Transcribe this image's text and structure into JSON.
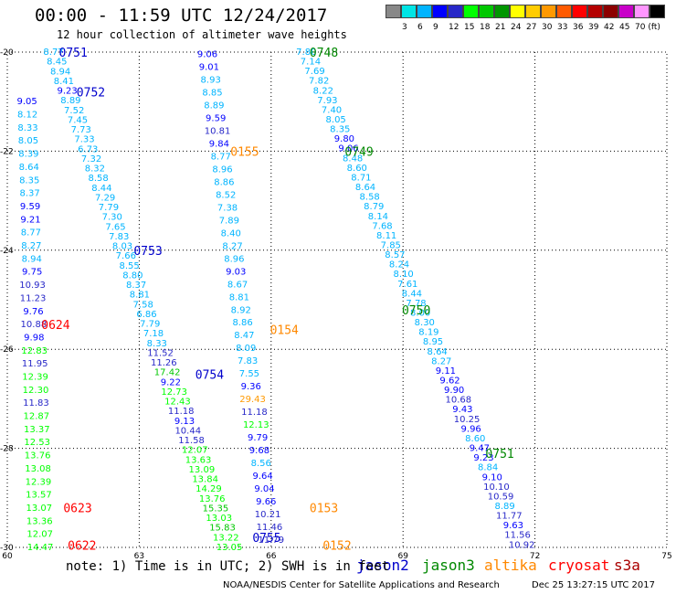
{
  "header": {
    "title": "00:00 - 11:59 UTC 12/24/2017",
    "subtitle": "12 hour collection of altimeter wave heights"
  },
  "colorbar": {
    "colors": [
      "#888888",
      "#00e5e5",
      "#00b4ff",
      "#0000ff",
      "#2828c8",
      "#00ff00",
      "#00c800",
      "#009600",
      "#ffff00",
      "#ffcc00",
      "#ff9900",
      "#ff5a00",
      "#ff0000",
      "#b40000",
      "#8c0000",
      "#c800c8",
      "#ff96ff",
      "#000000"
    ],
    "labels": [
      "3",
      "6",
      "9",
      "12",
      "15",
      "18",
      "21",
      "24",
      "27",
      "30",
      "33",
      "36",
      "39",
      "42",
      "45",
      "70 (ft)"
    ]
  },
  "axes": {
    "lon_ticks": [
      "60",
      "63",
      "66",
      "69",
      "72",
      "75"
    ],
    "lat_ticks": [
      "-20",
      "-22",
      "-24",
      "-26",
      "-28",
      "-30"
    ]
  },
  "legend": {
    "satellites": [
      {
        "name": "jason2",
        "color": "#0000cc"
      },
      {
        "name": "jason3",
        "color": "#008800"
      },
      {
        "name": "altika",
        "color": "#ff8800"
      },
      {
        "name": "cryosat",
        "color": "#ff0000"
      },
      {
        "name": "s3a",
        "color": "#aa0000"
      }
    ]
  },
  "footer": {
    "note": "note: 1) Time is in UTC; 2) SWH is in feet",
    "credit": "NOAA/NESDIS Center for Satellite Applications and Research",
    "timestamp": "Dec 25 13:27:15 UTC 2017"
  },
  "map_data": {
    "pass_labels": [
      {
        "text": "0751",
        "lon": 61.5,
        "lat": -20.0,
        "sat": "jason2"
      },
      {
        "text": "0752",
        "lon": 61.9,
        "lat": -20.8,
        "sat": "jason2"
      },
      {
        "text": "0753",
        "lon": 63.2,
        "lat": -24.0,
        "sat": "jason2"
      },
      {
        "text": "0754",
        "lon": 64.6,
        "lat": -26.5,
        "sat": "jason2"
      },
      {
        "text": "0755",
        "lon": 65.9,
        "lat": -29.8,
        "sat": "jason2"
      },
      {
        "text": "0748",
        "lon": 67.2,
        "lat": -20.0,
        "sat": "jason3"
      },
      {
        "text": "0749",
        "lon": 68.0,
        "lat": -22.0,
        "sat": "jason3"
      },
      {
        "text": "0750",
        "lon": 69.3,
        "lat": -25.2,
        "sat": "jason3"
      },
      {
        "text": "0751",
        "lon": 71.2,
        "lat": -28.1,
        "sat": "jason3"
      },
      {
        "text": "0155",
        "lon": 65.4,
        "lat": -22.0,
        "sat": "altika"
      },
      {
        "text": "0154",
        "lon": 66.3,
        "lat": -25.6,
        "sat": "altika"
      },
      {
        "text": "0153",
        "lon": 67.2,
        "lat": -29.2,
        "sat": "altika"
      },
      {
        "text": "0152",
        "lon": 67.5,
        "lat": -29.95,
        "sat": "altika"
      },
      {
        "text": "0624",
        "lon": 61.1,
        "lat": -25.5,
        "sat": "cryosat"
      },
      {
        "text": "0623",
        "lon": 61.6,
        "lat": -29.2,
        "sat": "cryosat"
      },
      {
        "text": "0622",
        "lon": 61.7,
        "lat": -29.95,
        "sat": "cryosat"
      }
    ],
    "tracks": [
      {
        "start": [
          61.05,
          -20.0
        ],
        "end": [
          65.05,
          -30.0
        ],
        "values": [
          [
            "8.77",
            "#00b4ff"
          ],
          [
            "8.45",
            "#00b4ff"
          ],
          [
            "8.94",
            "#00b4ff"
          ],
          [
            "8.41",
            "#00b4ff"
          ],
          [
            "9.23",
            "#0000ff"
          ],
          [
            "8.89",
            "#00b4ff"
          ],
          [
            "7.52",
            "#00b4ff"
          ],
          [
            "7.45",
            "#00b4ff"
          ],
          [
            "7.73",
            "#00b4ff"
          ],
          [
            "7.33",
            "#00b4ff"
          ],
          [
            "6.73",
            "#00b4ff"
          ],
          [
            "7.32",
            "#00b4ff"
          ],
          [
            "8.32",
            "#00b4ff"
          ],
          [
            "8.58",
            "#00b4ff"
          ],
          [
            "8.44",
            "#00b4ff"
          ],
          [
            "7.29",
            "#00b4ff"
          ],
          [
            "7.79",
            "#00b4ff"
          ],
          [
            "7.30",
            "#00b4ff"
          ],
          [
            "7.65",
            "#00b4ff"
          ],
          [
            "7.83",
            "#00b4ff"
          ],
          [
            "8.03",
            "#00b4ff"
          ],
          [
            "7.66",
            "#00b4ff"
          ],
          [
            "8.55",
            "#00b4ff"
          ],
          [
            "8.80",
            "#00b4ff"
          ],
          [
            "8.37",
            "#00b4ff"
          ],
          [
            "8.81",
            "#00b4ff"
          ],
          [
            "7.58",
            "#00b4ff"
          ],
          [
            "6.86",
            "#00b4ff"
          ],
          [
            "7.79",
            "#00b4ff"
          ],
          [
            "7.18",
            "#00b4ff"
          ],
          [
            "8.33",
            "#00b4ff"
          ],
          [
            "11.52",
            "#2828c8"
          ],
          [
            "11.26",
            "#2828c8"
          ],
          [
            "17.42",
            "#00c800"
          ],
          [
            "9.22",
            "#0000ff"
          ],
          [
            "12.73",
            "#00ff00"
          ],
          [
            "12.43",
            "#00ff00"
          ],
          [
            "11.18",
            "#2828c8"
          ],
          [
            "9.13",
            "#0000ff"
          ],
          [
            "10.44",
            "#2828c8"
          ],
          [
            "11.58",
            "#2828c8"
          ],
          [
            "12.07",
            "#00ff00"
          ],
          [
            "13.63",
            "#00ff00"
          ],
          [
            "13.09",
            "#00ff00"
          ],
          [
            "13.84",
            "#00ff00"
          ],
          [
            "14.29",
            "#00ff00"
          ],
          [
            "13.76",
            "#00ff00"
          ],
          [
            "15.35",
            "#00c800"
          ],
          [
            "13.03",
            "#00ff00"
          ],
          [
            "15.83",
            "#00c800"
          ],
          [
            "13.22",
            "#00ff00"
          ],
          [
            "13.05",
            "#00ff00"
          ]
        ]
      },
      {
        "start": [
          64.55,
          -20.05
        ],
        "end": [
          66.0,
          -29.85
        ],
        "values": [
          [
            "9.06",
            "#0000ff"
          ],
          [
            "9.01",
            "#0000ff"
          ],
          [
            "8.93",
            "#00b4ff"
          ],
          [
            "8.85",
            "#00b4ff"
          ],
          [
            "8.89",
            "#00b4ff"
          ],
          [
            "9.59",
            "#0000ff"
          ],
          [
            "10.81",
            "#2828c8"
          ],
          [
            "9.84",
            "#0000ff"
          ],
          [
            "8.77",
            "#00b4ff"
          ],
          [
            "8.96",
            "#00b4ff"
          ],
          [
            "8.86",
            "#00b4ff"
          ],
          [
            "8.52",
            "#00b4ff"
          ],
          [
            "7.38",
            "#00b4ff"
          ],
          [
            "7.89",
            "#00b4ff"
          ],
          [
            "8.40",
            "#00b4ff"
          ],
          [
            "8.27",
            "#00b4ff"
          ],
          [
            "8.96",
            "#00b4ff"
          ],
          [
            "9.03",
            "#0000ff"
          ],
          [
            "8.67",
            "#00b4ff"
          ],
          [
            "8.81",
            "#00b4ff"
          ],
          [
            "8.92",
            "#00b4ff"
          ],
          [
            "8.86",
            "#00b4ff"
          ],
          [
            "8.47",
            "#00b4ff"
          ],
          [
            "8.09",
            "#00b4ff"
          ],
          [
            "7.83",
            "#00b4ff"
          ],
          [
            "7.55",
            "#00b4ff"
          ],
          [
            "9.36",
            "#0000ff"
          ],
          [
            "29.43",
            "#ff9900"
          ],
          [
            "11.18",
            "#2828c8"
          ],
          [
            "12.13",
            "#00ff00"
          ],
          [
            "9.79",
            "#0000ff"
          ],
          [
            "9.68",
            "#0000ff"
          ],
          [
            "8.56",
            "#00b4ff"
          ],
          [
            "9.64",
            "#0000ff"
          ],
          [
            "9.04",
            "#0000ff"
          ],
          [
            "9.66",
            "#0000ff"
          ],
          [
            "10.21",
            "#2828c8"
          ],
          [
            "11.46",
            "#2828c8"
          ],
          [
            "11.79",
            "#2828c8"
          ]
        ]
      },
      {
        "start": [
          66.8,
          -20.0
        ],
        "end": [
          71.7,
          -29.95
        ],
        "values": [
          [
            "7.80",
            "#00b4ff"
          ],
          [
            "7.14",
            "#00b4ff"
          ],
          [
            "7.69",
            "#00b4ff"
          ],
          [
            "7.82",
            "#00b4ff"
          ],
          [
            "8.22",
            "#00b4ff"
          ],
          [
            "7.93",
            "#00b4ff"
          ],
          [
            "7.40",
            "#00b4ff"
          ],
          [
            "8.05",
            "#00b4ff"
          ],
          [
            "8.35",
            "#00b4ff"
          ],
          [
            "9.80",
            "#0000ff"
          ],
          [
            "9.06",
            "#0000ff"
          ],
          [
            "8.48",
            "#00b4ff"
          ],
          [
            "8.60",
            "#00b4ff"
          ],
          [
            "8.71",
            "#00b4ff"
          ],
          [
            "8.64",
            "#00b4ff"
          ],
          [
            "8.58",
            "#00b4ff"
          ],
          [
            "8.79",
            "#00b4ff"
          ],
          [
            "8.14",
            "#00b4ff"
          ],
          [
            "7.68",
            "#00b4ff"
          ],
          [
            "8.11",
            "#00b4ff"
          ],
          [
            "7.85",
            "#00b4ff"
          ],
          [
            "8.57",
            "#00b4ff"
          ],
          [
            "8.24",
            "#00b4ff"
          ],
          [
            "8.10",
            "#00b4ff"
          ],
          [
            "7.61",
            "#00b4ff"
          ],
          [
            "8.44",
            "#00b4ff"
          ],
          [
            "7.78",
            "#00b4ff"
          ],
          [
            "8.00",
            "#00b4ff"
          ],
          [
            "8.30",
            "#00b4ff"
          ],
          [
            "8.19",
            "#00b4ff"
          ],
          [
            "8.95",
            "#00b4ff"
          ],
          [
            "8.64",
            "#00b4ff"
          ],
          [
            "8.27",
            "#00b4ff"
          ],
          [
            "9.11",
            "#0000ff"
          ],
          [
            "9.62",
            "#0000ff"
          ],
          [
            "9.90",
            "#0000ff"
          ],
          [
            "10.68",
            "#2828c8"
          ],
          [
            "9.43",
            "#0000ff"
          ],
          [
            "10.25",
            "#2828c8"
          ],
          [
            "9.96",
            "#0000ff"
          ],
          [
            "8.60",
            "#00b4ff"
          ],
          [
            "9.47",
            "#0000ff"
          ],
          [
            "9.23",
            "#0000ff"
          ],
          [
            "8.84",
            "#00b4ff"
          ],
          [
            "9.10",
            "#0000ff"
          ],
          [
            "10.10",
            "#2828c8"
          ],
          [
            "10.59",
            "#2828c8"
          ],
          [
            "8.89",
            "#00b4ff"
          ],
          [
            "11.77",
            "#2828c8"
          ],
          [
            "9.63",
            "#0000ff"
          ],
          [
            "11.56",
            "#2828c8"
          ],
          [
            "10.92",
            "#2828c8"
          ]
        ]
      },
      {
        "start": [
          60.45,
          -21.0
        ],
        "end": [
          60.75,
          -30.0
        ],
        "values": [
          [
            "9.05",
            "#0000ff"
          ],
          [
            "8.12",
            "#00b4ff"
          ],
          [
            "8.33",
            "#00b4ff"
          ],
          [
            "8.05",
            "#00b4ff"
          ],
          [
            "8.39",
            "#00b4ff"
          ],
          [
            "8.64",
            "#00b4ff"
          ],
          [
            "8.35",
            "#00b4ff"
          ],
          [
            "8.37",
            "#00b4ff"
          ],
          [
            "9.59",
            "#0000ff"
          ],
          [
            "9.21",
            "#0000ff"
          ],
          [
            "8.77",
            "#00b4ff"
          ],
          [
            "8.27",
            "#00b4ff"
          ],
          [
            "8.94",
            "#00b4ff"
          ],
          [
            "9.75",
            "#0000ff"
          ],
          [
            "10.93",
            "#2828c8"
          ],
          [
            "11.23",
            "#2828c8"
          ],
          [
            "9.76",
            "#0000ff"
          ],
          [
            "10.88",
            "#2828c8"
          ],
          [
            "9.98",
            "#0000ff"
          ],
          [
            "12.83",
            "#00ff00"
          ],
          [
            "11.95",
            "#2828c8"
          ],
          [
            "12.39",
            "#00ff00"
          ],
          [
            "12.30",
            "#00ff00"
          ],
          [
            "11.83",
            "#2828c8"
          ],
          [
            "12.87",
            "#00ff00"
          ],
          [
            "13.37",
            "#00ff00"
          ],
          [
            "12.53",
            "#00ff00"
          ],
          [
            "13.76",
            "#00ff00"
          ],
          [
            "13.08",
            "#00ff00"
          ],
          [
            "12.39",
            "#00ff00"
          ],
          [
            "13.57",
            "#00ff00"
          ],
          [
            "13.07",
            "#00ff00"
          ],
          [
            "13.36",
            "#00ff00"
          ],
          [
            "12.07",
            "#00ff00"
          ],
          [
            "14.47",
            "#00ff00"
          ]
        ]
      }
    ]
  }
}
